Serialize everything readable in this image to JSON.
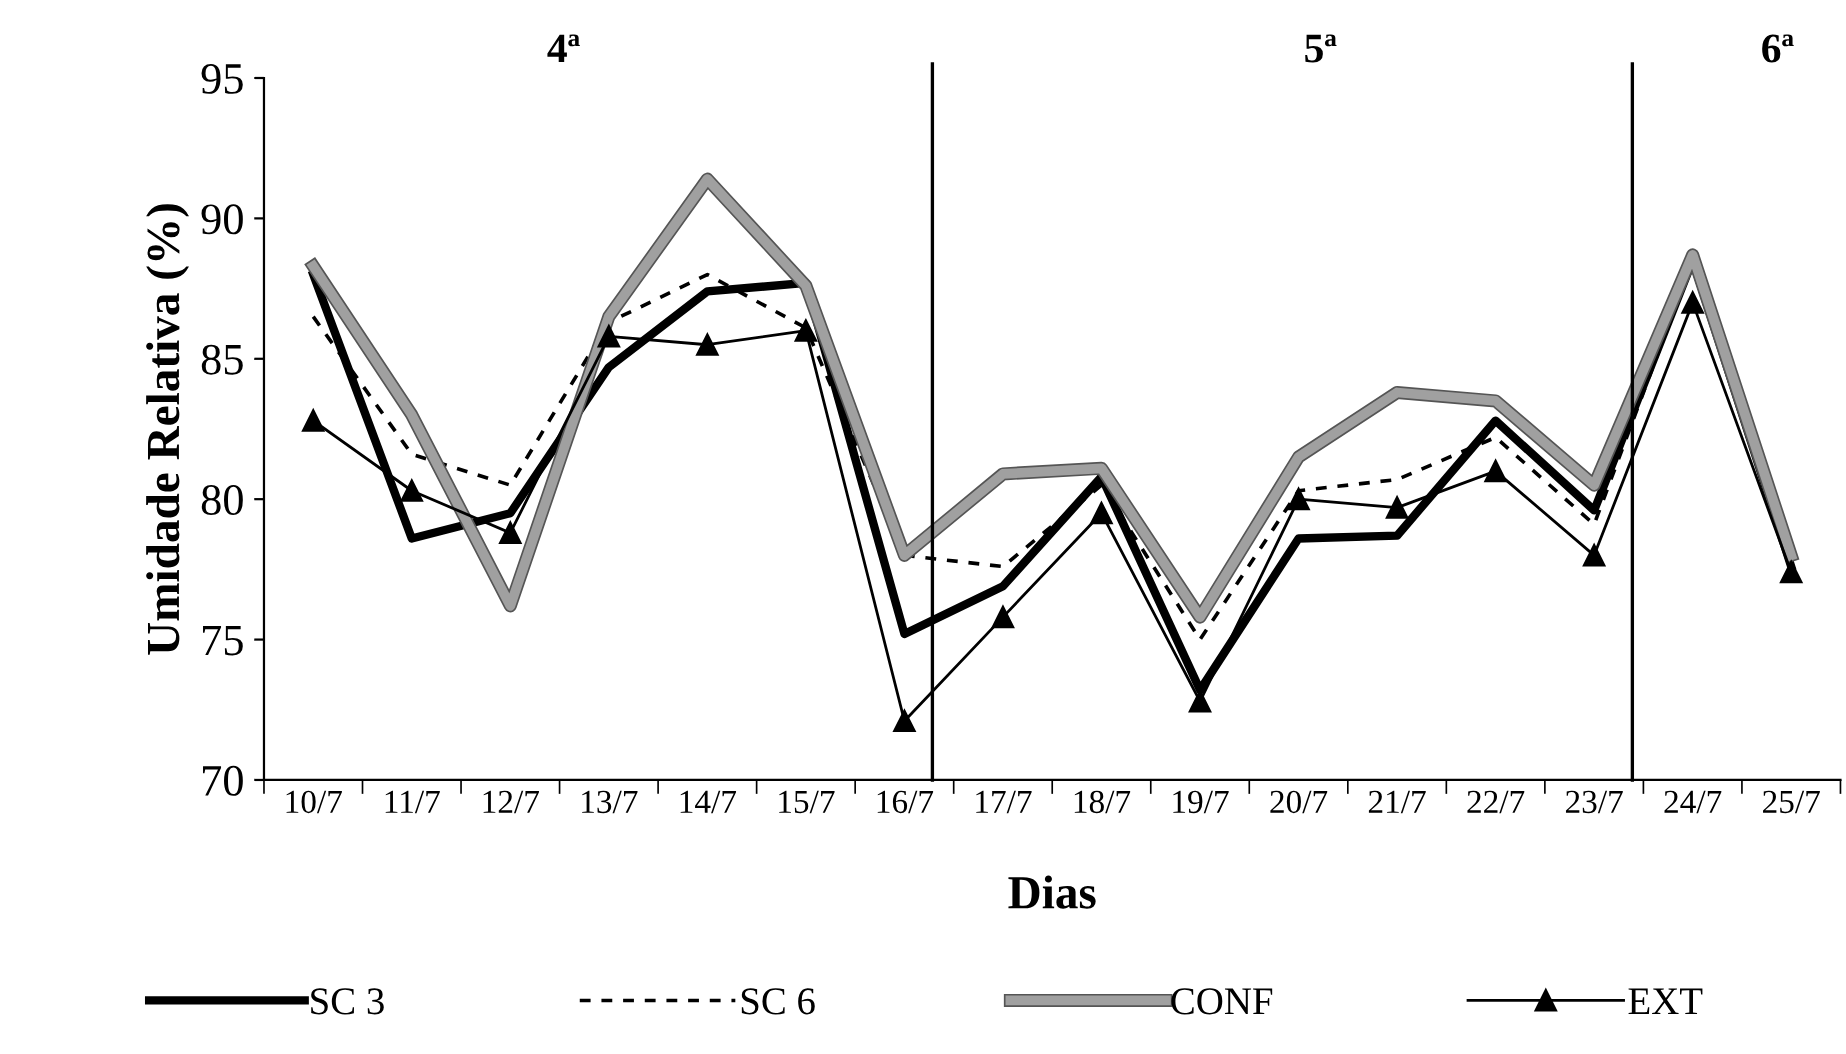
{
  "chart_data": {
    "type": "line",
    "xlabel": "Dias",
    "ylabel": "Umidade Relativa (%)",
    "categories": [
      "10/7",
      "11/7",
      "12/7",
      "13/7",
      "14/7",
      "15/7",
      "16/7",
      "17/7",
      "18/7",
      "19/7",
      "20/7",
      "21/7",
      "22/7",
      "23/7",
      "24/7",
      "25/7"
    ],
    "ylim": [
      70,
      95
    ],
    "yticks": [
      70,
      75,
      80,
      85,
      90,
      95
    ],
    "grid": false,
    "legend": "bottom",
    "series": [
      {
        "name": "SC 3",
        "color": "#000000",
        "line_style": "solid",
        "marker": "none",
        "values": [
          88.0,
          78.6,
          79.5,
          84.7,
          87.4,
          87.7,
          75.2,
          76.9,
          80.8,
          73.2,
          78.6,
          78.7,
          82.8,
          79.6,
          88.5,
          77.6
        ]
      },
      {
        "name": "SC 6",
        "color": "#000000",
        "line_style": "dashed",
        "marker": "none",
        "values": [
          86.5,
          81.6,
          80.5,
          86.3,
          88.0,
          86.1,
          78.0,
          77.6,
          80.5,
          75.0,
          80.3,
          80.7,
          82.2,
          79.1,
          88.5,
          77.8
        ]
      },
      {
        "name": "CONF",
        "color": "#a0a0a0",
        "line_style": "solid",
        "marker": "none",
        "values": [
          88.3,
          83.0,
          76.2,
          86.5,
          91.4,
          87.6,
          78.0,
          80.9,
          81.1,
          75.8,
          81.5,
          83.8,
          83.5,
          80.5,
          88.7,
          78.0
        ]
      },
      {
        "name": "EXT",
        "color": "#000000",
        "line_style": "solid",
        "marker": "triangle",
        "values": [
          82.8,
          80.3,
          78.8,
          85.8,
          85.5,
          86.0,
          72.1,
          75.8,
          79.5,
          72.8,
          80.0,
          79.7,
          81.0,
          78.0,
          87.0,
          77.4
        ]
      }
    ],
    "annotations": [
      "4ª",
      "5ª",
      "6ª"
    ]
  }
}
